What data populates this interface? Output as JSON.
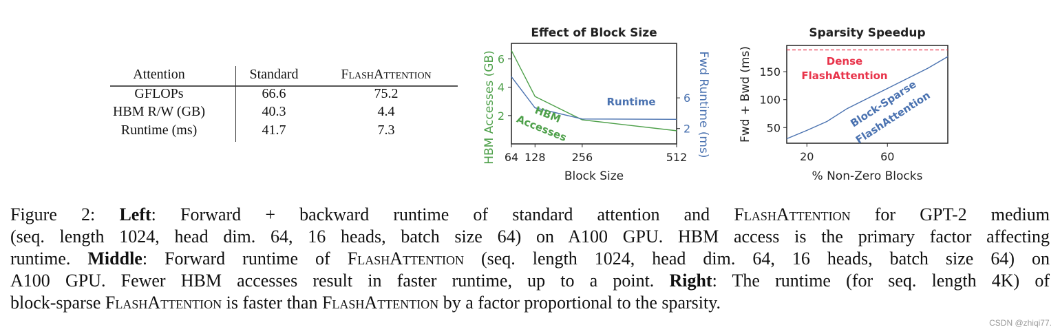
{
  "table": {
    "headers": [
      "Attention",
      "Standard",
      "FlashAttention"
    ],
    "rows": [
      [
        "GFLOPs",
        "66.6",
        "75.2"
      ],
      [
        "HBM R/W (GB)",
        "40.3",
        "4.4"
      ],
      [
        "Runtime (ms)",
        "41.7",
        "7.3"
      ]
    ]
  },
  "chart_data": [
    {
      "type": "line",
      "title": "Effect of Block Size",
      "xlabel": "Block Size",
      "ylabel": "HBM Accesses (GB)",
      "y2label": "Fwd Runtime (ms)",
      "x": [
        64,
        128,
        256,
        512
      ],
      "xticks": [
        "64",
        "128",
        "256",
        "512"
      ],
      "xlim": [
        64,
        512
      ],
      "ylim": [
        0,
        7.1
      ],
      "yticks": [
        "2",
        "4",
        "6"
      ],
      "y2lim": [
        0,
        13.1
      ],
      "y2ticks": [
        "2",
        "6"
      ],
      "grid": false,
      "series": [
        {
          "name": "HBM Accesses",
          "axis": "left",
          "color": "#4ea04a",
          "values": [
            6.6,
            3.35,
            1.7,
            0.93
          ]
        },
        {
          "name": "Runtime",
          "axis": "right",
          "color": "#4a72b0",
          "values": [
            8.75,
            4.7,
            3.25,
            3.2
          ]
        }
      ]
    },
    {
      "type": "line",
      "title": "Sparsity Speedup",
      "xlabel": "% Non-Zero Blocks",
      "ylabel": "Fwd + Bwd (ms)",
      "xlim": [
        10,
        90
      ],
      "xticks": [
        "20",
        "60"
      ],
      "ylim": [
        22,
        197
      ],
      "yticks": [
        "50",
        "100",
        "150"
      ],
      "grid": false,
      "series": [
        {
          "name": "Dense FlashAttention",
          "name_lines": [
            "Dense",
            "FlashAttention"
          ],
          "color": "#e8334a",
          "style": "dashed",
          "x": [
            10,
            90
          ],
          "values": [
            189,
            189
          ]
        },
        {
          "name": "Block-Sparse FlashAttention",
          "name_lines": [
            "Block-Sparse",
            "FlashAttention"
          ],
          "color": "#4a72b0",
          "x": [
            10,
            20,
            30,
            40,
            50,
            60,
            70,
            80,
            90
          ],
          "values": [
            30,
            45,
            61,
            84,
            102,
            120,
            138,
            156,
            177
          ]
        }
      ]
    }
  ],
  "caption": {
    "lines": [
      [
        {
          "t": "Figure 2:  "
        },
        {
          "t": "Left",
          "s": "b"
        },
        {
          "t": ": Forward + backward runtime of standard attention and "
        },
        {
          "t": "FlashAttention",
          "s": "sc"
        },
        {
          "t": " for GPT-2 medium"
        }
      ],
      [
        {
          "t": "(seq. length 1024, head dim. 64, 16 heads, batch size 64) on A100 GPU. HBM access is the primary factor affecting"
        }
      ],
      [
        {
          "t": "runtime. "
        },
        {
          "t": "Middle",
          "s": "b"
        },
        {
          "t": ": Forward runtime of "
        },
        {
          "t": "FlashAttention",
          "s": "sc"
        },
        {
          "t": " (seq. length 1024, head dim. 64, 16 heads, batch size 64) on"
        }
      ],
      [
        {
          "t": "A100 GPU. Fewer HBM accesses result in faster runtime, up to a point. "
        },
        {
          "t": "Right",
          "s": "b"
        },
        {
          "t": ": The runtime (for seq. length 4K) of"
        }
      ],
      [
        {
          "t": "block-sparse "
        },
        {
          "t": "FlashAttention",
          "s": "sc"
        },
        {
          "t": " is faster than "
        },
        {
          "t": "FlashAttention",
          "s": "sc"
        },
        {
          "t": " by a factor proportional to the sparsity."
        }
      ]
    ]
  },
  "watermark": "CSDN @zhiqi77."
}
